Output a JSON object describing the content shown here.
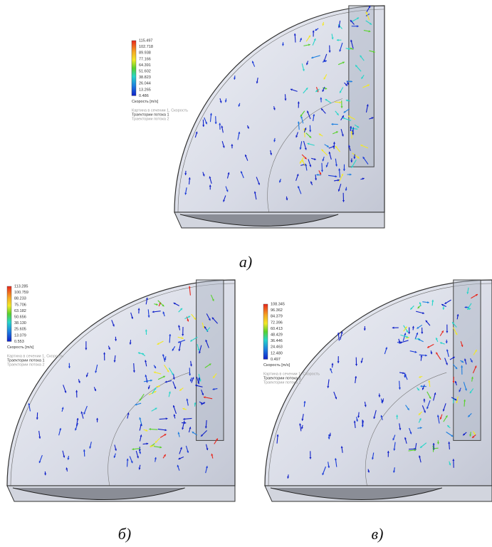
{
  "panels": [
    {
      "caption": "а)",
      "legend": {
        "values": [
          "115.497",
          "102.718",
          "89.938",
          "77.166",
          "64.391",
          "51.602",
          "38.823",
          "26.044",
          "13.265",
          "0.486"
        ],
        "title": "Скорость [m/s]",
        "notes": [
          "Картина в сечении 1, Скорость",
          "Траектории потока 1",
          "Траектории потока 2"
        ]
      }
    },
    {
      "caption": "б)",
      "legend": {
        "values": [
          "113.285",
          "100.759",
          "88.233",
          "75.706",
          "63.182",
          "50.656",
          "38.130",
          "25.605",
          "13.079",
          "0.553"
        ],
        "title": "Скорость [m/s]",
        "notes": [
          "Картина в сечении 1, Скорость",
          "Траектории потока 1",
          "Траектории потока 2"
        ]
      }
    },
    {
      "caption": "в)",
      "legend": {
        "values": [
          "108.345",
          "96.362",
          "84.379",
          "72.396",
          "60.413",
          "48.429",
          "36.446",
          "24.463",
          "12.480",
          "0.497"
        ],
        "title": "Скорость [m/s]",
        "notes": [
          "Картина в сечении 1, Скорость",
          "Траектории потока 1",
          "Траектории потока 2"
        ]
      }
    }
  ]
}
